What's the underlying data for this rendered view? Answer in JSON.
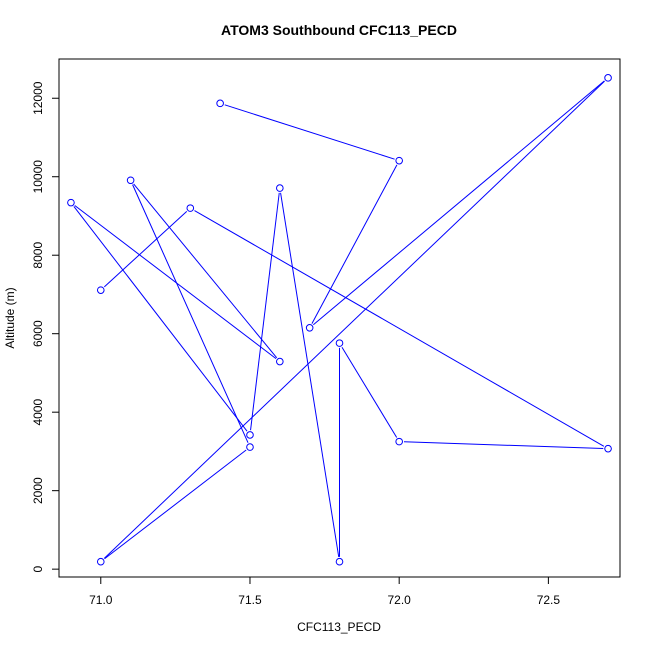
{
  "chart_data": {
    "type": "line",
    "title": "ATOM3 Southbound CFC113_PECD",
    "xlabel": "CFC113_PECD",
    "ylabel": "Altitude (m)",
    "xlim": [
      70.86,
      72.74
    ],
    "ylim": [
      -200,
      13000
    ],
    "xticks": [
      71.0,
      71.5,
      72.0,
      72.5
    ],
    "xtick_labels": [
      "71.0",
      "71.5",
      "72.0",
      "72.5"
    ],
    "yticks": [
      0,
      2000,
      4000,
      6000,
      8000,
      10000,
      12000
    ],
    "ytick_labels": [
      "0",
      "2000",
      "4000",
      "6000",
      "8000",
      "10000",
      "12000"
    ],
    "grid": false,
    "series": [
      {
        "color": "#0000ff",
        "marker": "open-circle",
        "points": [
          {
            "x": 71.4,
            "y": 11870
          },
          {
            "x": 72.0,
            "y": 10410
          },
          {
            "x": 71.7,
            "y": 6150
          },
          {
            "x": 72.7,
            "y": 12520
          },
          {
            "x": 71.0,
            "y": 190
          },
          {
            "x": 71.5,
            "y": 3110
          },
          {
            "x": 71.1,
            "y": 9910
          },
          {
            "x": 71.6,
            "y": 5290
          },
          {
            "x": 70.9,
            "y": 9340
          },
          {
            "x": 71.5,
            "y": 3420
          },
          {
            "x": 71.6,
            "y": 9710
          },
          {
            "x": 71.8,
            "y": 190
          },
          {
            "x": 71.8,
            "y": 5760
          },
          {
            "x": 72.0,
            "y": 3250
          },
          {
            "x": 72.7,
            "y": 3070
          },
          {
            "x": 71.3,
            "y": 9200
          },
          {
            "x": 71.0,
            "y": 7110
          }
        ]
      }
    ]
  }
}
